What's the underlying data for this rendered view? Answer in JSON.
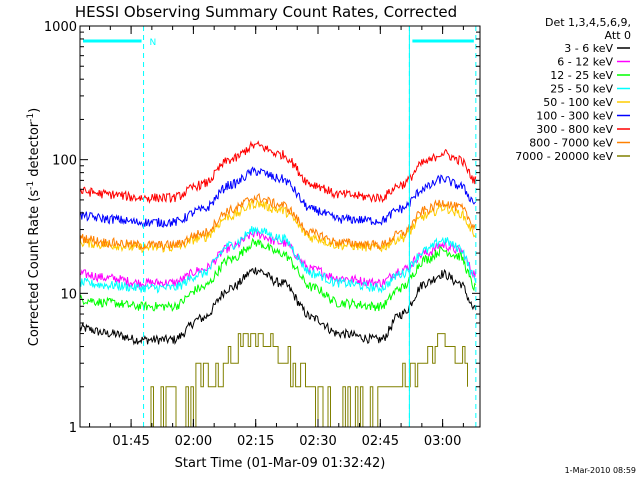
{
  "chart_data": {
    "type": "line",
    "title": "HESSI Observing Summary Count Rates, Corrected",
    "xlabel": "Start Time (01-Mar-09 01:32:42)",
    "ylabel_main": "Corrected Count Rate (s",
    "ylabel_sup1": "-1",
    "ylabel_mid": " detector",
    "ylabel_sup2": "-1",
    "ylabel_end": ")",
    "yscale": "log",
    "ylim": [
      1,
      1000
    ],
    "y_ticks": [
      {
        "value": 1,
        "label": "1"
      },
      {
        "value": 10,
        "label": "10"
      },
      {
        "value": 100,
        "label": "100"
      },
      {
        "value": 1000,
        "label": "1000"
      }
    ],
    "xlim": [
      "01:32:42",
      "03:09:00"
    ],
    "x_ticks": [
      {
        "value": "01:45",
        "label": "01:45"
      },
      {
        "value": "02:00",
        "label": "02:00"
      },
      {
        "value": "02:15",
        "label": "02:15"
      },
      {
        "value": "02:30",
        "label": "02:30"
      },
      {
        "value": "02:45",
        "label": "02:45"
      },
      {
        "value": "03:00",
        "label": "03:00"
      }
    ],
    "legend_header": [
      "Det 1,3,4,5,6,9,",
      "Att 0"
    ],
    "legend_placement": "right",
    "series": [
      {
        "name": "3 - 6 keV",
        "color": "#000000",
        "x": [
          "01:32:42",
          "01:40",
          "01:47",
          "01:55",
          "02:02",
          "02:09",
          "02:15",
          "02:21",
          "02:29",
          "02:35",
          "02:45",
          "02:50",
          "02:56",
          "03:00",
          "03:04",
          "03:08"
        ],
        "values": [
          5.5,
          5,
          4.5,
          4.5,
          6.5,
          11,
          15,
          12,
          6.5,
          5,
          4.5,
          7,
          12,
          14,
          12,
          7.5
        ]
      },
      {
        "name": "6 - 12 keV",
        "color": "#ff00ff",
        "x": [
          "01:32:42",
          "01:40",
          "01:47",
          "01:55",
          "02:02",
          "02:09",
          "02:15",
          "02:21",
          "02:29",
          "02:35",
          "02:45",
          "02:50",
          "02:56",
          "03:00",
          "03:04",
          "03:08"
        ],
        "values": [
          14,
          13,
          12,
          12,
          15,
          22,
          28,
          24,
          15,
          13,
          12,
          15,
          20,
          23,
          21,
          14
        ]
      },
      {
        "name": "12 - 25 keV",
        "color": "#00ff00",
        "x": [
          "01:32:42",
          "01:40",
          "01:47",
          "01:55",
          "02:02",
          "02:09",
          "02:15",
          "02:21",
          "02:29",
          "02:35",
          "02:45",
          "02:50",
          "02:56",
          "03:00",
          "03:04",
          "03:08"
        ],
        "values": [
          9,
          8.5,
          8,
          8,
          11,
          18,
          24,
          20,
          11,
          8.5,
          8,
          11,
          18,
          21,
          19,
          11
        ]
      },
      {
        "name": "25 - 50 keV",
        "color": "#00ffff",
        "x": [
          "01:32:42",
          "01:40",
          "01:47",
          "01:55",
          "02:02",
          "02:09",
          "02:15",
          "02:21",
          "02:29",
          "02:35",
          "02:45",
          "02:50",
          "02:56",
          "03:00",
          "03:04",
          "03:08"
        ],
        "values": [
          12,
          11.5,
          11,
          11,
          14,
          23,
          30,
          26,
          14,
          12,
          11,
          14,
          21,
          25,
          22,
          13
        ]
      },
      {
        "name": "50 - 100 keV",
        "color": "#ffcc00",
        "x": [
          "01:32:42",
          "01:40",
          "01:47",
          "01:55",
          "02:02",
          "02:09",
          "02:15",
          "02:21",
          "02:29",
          "02:35",
          "02:45",
          "02:50",
          "02:56",
          "03:00",
          "03:04",
          "03:08"
        ],
        "values": [
          24,
          23,
          22,
          22,
          26,
          38,
          47,
          42,
          26,
          23,
          22,
          26,
          38,
          44,
          40,
          28
        ]
      },
      {
        "name": "100 - 300 keV",
        "color": "#0000ff",
        "x": [
          "01:32:42",
          "01:40",
          "01:47",
          "01:55",
          "02:02",
          "02:09",
          "02:15",
          "02:21",
          "02:29",
          "02:35",
          "02:45",
          "02:50",
          "02:56",
          "03:00",
          "03:04",
          "03:08"
        ],
        "values": [
          38,
          36,
          34,
          34,
          42,
          65,
          82,
          72,
          42,
          36,
          35,
          43,
          62,
          72,
          64,
          48
        ]
      },
      {
        "name": "300 - 800 keV",
        "color": "#ff0000",
        "x": [
          "01:32:42",
          "01:40",
          "01:47",
          "01:55",
          "02:02",
          "02:09",
          "02:15",
          "02:21",
          "02:29",
          "02:35",
          "02:45",
          "02:50",
          "02:56",
          "03:00",
          "03:04",
          "03:08"
        ],
        "values": [
          58,
          55,
          52,
          52,
          65,
          100,
          128,
          110,
          65,
          55,
          52,
          65,
          96,
          112,
          100,
          70
        ]
      },
      {
        "name": "800 - 7000 keV",
        "color": "#ff8000",
        "x": [
          "01:32:42",
          "01:40",
          "01:47",
          "01:55",
          "02:02",
          "02:09",
          "02:15",
          "02:21",
          "02:29",
          "02:35",
          "02:45",
          "02:50",
          "02:56",
          "03:00",
          "03:04",
          "03:08"
        ],
        "values": [
          26,
          24,
          23,
          23,
          28,
          42,
          52,
          46,
          28,
          24,
          23,
          28,
          42,
          48,
          44,
          32
        ]
      },
      {
        "name": "7000 - 20000 keV",
        "color": "#808000",
        "x": [
          "01:48",
          "01:54",
          "01:59",
          "02:05",
          "02:09",
          "02:12",
          "02:15",
          "02:18",
          "02:21",
          "02:25",
          "02:30",
          "02:42",
          "02:48",
          "02:52",
          "02:57",
          "03:00",
          "03:03",
          "03:06"
        ],
        "values": [
          1.1,
          1.4,
          1.8,
          2.6,
          3.4,
          4.3,
          4.6,
          4.3,
          3.4,
          2.4,
          1.6,
          1.1,
          1.8,
          2.6,
          3.6,
          4.5,
          3.6,
          2.4
        ]
      }
    ],
    "markers": {
      "night_bars": [
        {
          "start": "01:32:42",
          "end": "01:48",
          "label": "N"
        },
        {
          "start": "02:52",
          "end": "03:08",
          "label": ""
        }
      ],
      "dashed_lines": [
        "01:48",
        "02:52",
        "03:08"
      ],
      "solid_lines": [
        "01:32:42",
        "02:52"
      ],
      "marker_color": "#00ffff"
    },
    "grid": false
  },
  "footer": {
    "timestamp": "1-Mar-2010 08:59"
  }
}
